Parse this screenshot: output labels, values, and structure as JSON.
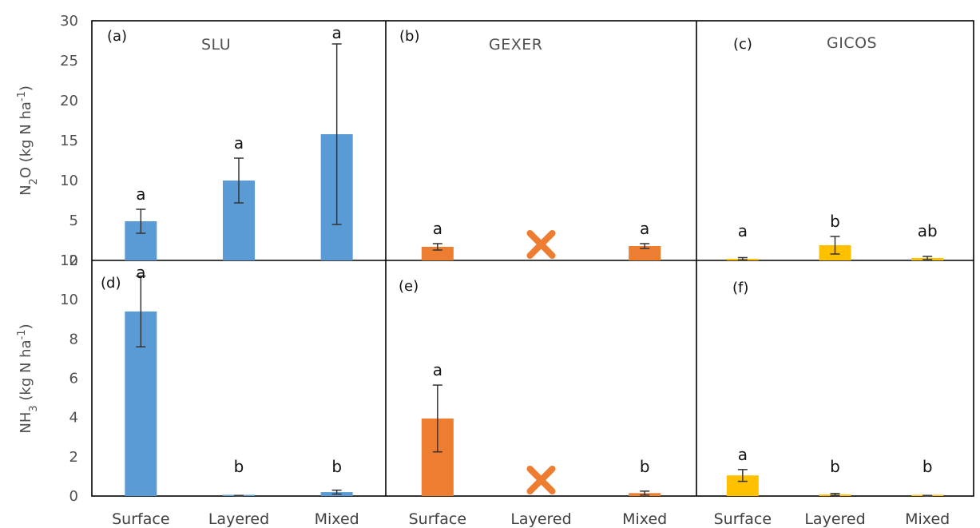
{
  "chart_data": [
    {
      "type": "bar",
      "panel_label": "(a)",
      "title": "SLU",
      "ylabel": "N2O (kg N ha-1)",
      "ylabel_parts": {
        "main": "N",
        "sub": "2",
        "rest": "O (kg N ha",
        "sup": "-1",
        "end": ")"
      },
      "yticks": [
        "0",
        "5",
        "10",
        "15",
        "20",
        "25",
        "30"
      ],
      "ylim": [
        0,
        30
      ],
      "categories": [
        "Surface",
        "Layered",
        "Mixed"
      ],
      "values": [
        4.9,
        10.0,
        15.8
      ],
      "errors": [
        1.5,
        2.8,
        11.3
      ],
      "letters": [
        "a",
        "a",
        "a"
      ],
      "missing": [
        false,
        false,
        false
      ],
      "color": "#5b9bd5"
    },
    {
      "type": "bar",
      "panel_label": "(b)",
      "title": "GEXER",
      "ylim": [
        0,
        30
      ],
      "categories": [
        "Surface",
        "Layered",
        "Mixed"
      ],
      "values": [
        1.7,
        null,
        1.8
      ],
      "errors": [
        0.4,
        null,
        0.3
      ],
      "letters": [
        "a",
        "",
        "a"
      ],
      "missing": [
        false,
        true,
        false
      ],
      "color": "#ed7d31"
    },
    {
      "type": "bar",
      "panel_label": "(c)",
      "title": "GICOS",
      "ylim": [
        0,
        30
      ],
      "categories": [
        "Surface",
        "Layered",
        "Mixed"
      ],
      "values": [
        0.2,
        1.9,
        0.3
      ],
      "errors": [
        0.15,
        1.1,
        0.2
      ],
      "letters": [
        "a",
        "b",
        "ab"
      ],
      "missing": [
        false,
        false,
        false
      ],
      "color": "#ffc000"
    },
    {
      "type": "bar",
      "panel_label": "(d)",
      "title": "",
      "ylabel": "NH3 (kg N ha-1)",
      "ylabel_parts": {
        "main": "NH",
        "sub": "3",
        "rest": " (kg N ha",
        "sup": "-1",
        "end": ")"
      },
      "yticks": [
        "0",
        "2",
        "4",
        "6",
        "8",
        "10",
        "12"
      ],
      "ylim": [
        0,
        12
      ],
      "categories": [
        "Surface",
        "Layered",
        "Mixed"
      ],
      "values": [
        9.4,
        0.02,
        0.2
      ],
      "errors": [
        1.8,
        0.01,
        0.1
      ],
      "letters": [
        "a",
        "b",
        "b"
      ],
      "missing": [
        false,
        false,
        false
      ],
      "color": "#5b9bd5"
    },
    {
      "type": "bar",
      "panel_label": "(e)",
      "title": "",
      "ylim": [
        0,
        12
      ],
      "categories": [
        "Surface",
        "Layered",
        "Mixed"
      ],
      "values": [
        3.95,
        null,
        0.15
      ],
      "errors": [
        1.7,
        null,
        0.1
      ],
      "letters": [
        "a",
        "",
        "b"
      ],
      "missing": [
        false,
        true,
        false
      ],
      "color": "#ed7d31"
    },
    {
      "type": "bar",
      "panel_label": "(f)",
      "title": "",
      "ylim": [
        0,
        12
      ],
      "categories": [
        "Surface",
        "Layered",
        "Mixed"
      ],
      "values": [
        1.05,
        0.08,
        0.02
      ],
      "errors": [
        0.3,
        0.05,
        0.01
      ],
      "letters": [
        "a",
        "b",
        "b"
      ],
      "missing": [
        false,
        false,
        false
      ],
      "color": "#ffc000"
    }
  ],
  "x_categories": [
    "Surface",
    "Layered",
    "Mixed",
    "Surface",
    "Layered",
    "Mixed",
    "Surface",
    "Layered",
    "Mixed"
  ],
  "missing_marker_color": "#ed7d31"
}
